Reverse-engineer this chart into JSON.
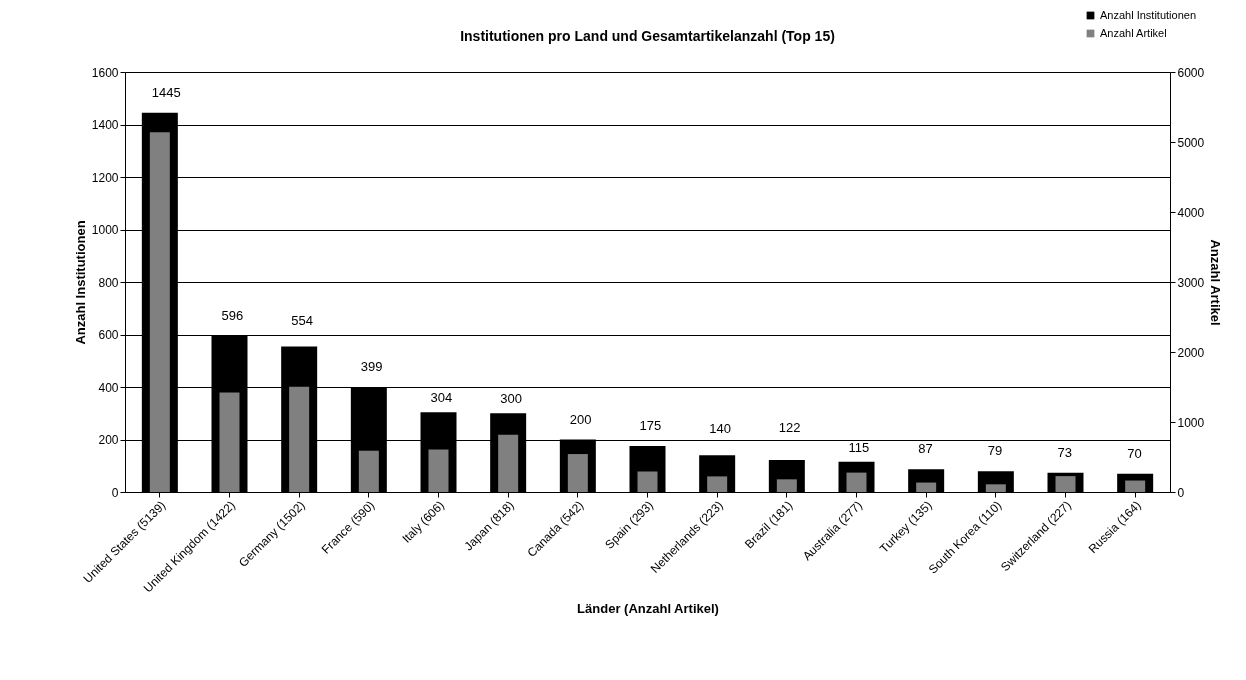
{
  "chart_data": {
    "type": "bar",
    "title": "Institutionen pro Land und Gesamtartikelanzahl (Top 15)",
    "xlabel": "Länder (Anzahl Artikel)",
    "ylabel": "Anzahl Institutionen",
    "y2label": "Anzahl Artikel",
    "categories": [
      "United States (5139)",
      "United Kingdom (1422)",
      "Germany (1502)",
      "France (590)",
      "Italy (606)",
      "Japan (818)",
      "Canada (542)",
      "Spain (293)",
      "Netherlands (223)",
      "Brazil (181)",
      "Australia (277)",
      "Turkey (135)",
      "South Korea (110)",
      "Switzerland (227)",
      "Russia (164)"
    ],
    "series": [
      {
        "name": "Anzahl Institutionen",
        "color": "#000000",
        "values": [
          1445,
          596,
          554,
          399,
          304,
          300,
          200,
          175,
          140,
          122,
          115,
          87,
          79,
          73,
          70
        ],
        "data_labels": true
      },
      {
        "name": "Anzahl Artikel",
        "color": "#808080",
        "axis": "y2",
        "values": [
          5139,
          1422,
          1502,
          590,
          606,
          818,
          542,
          293,
          223,
          181,
          277,
          135,
          110,
          227,
          164
        ]
      }
    ],
    "ylim": [
      0,
      1600
    ],
    "yticks": [
      0,
      200,
      400,
      600,
      800,
      1000,
      1200,
      1400,
      1600
    ],
    "y2lim": [
      0,
      6000
    ],
    "y2ticks": [
      0,
      1000,
      2000,
      3000,
      4000,
      5000,
      6000
    ],
    "grid": "y",
    "legend": "top right"
  }
}
